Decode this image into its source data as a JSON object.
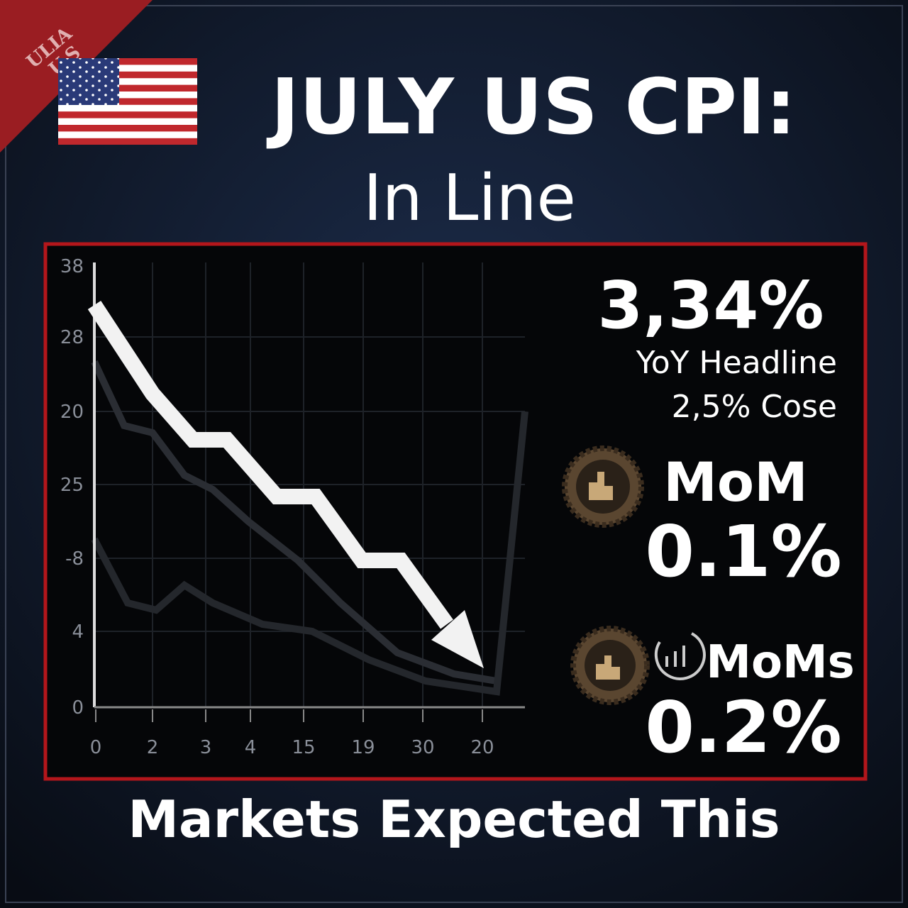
{
  "header": {
    "badge": [
      "ULIA",
      "U.S"
    ],
    "title": "JULY US CPI:",
    "subtitle": "In Line"
  },
  "chart": {
    "y_labels": [
      38,
      28,
      20,
      25,
      -8,
      4,
      0
    ],
    "x_labels": [
      0,
      2,
      3,
      4,
      15,
      19,
      30,
      20
    ]
  },
  "stats": {
    "headline_value": "3,34%",
    "headline_label": "YoY Headline",
    "core_label": "2,5% Cose",
    "mom_label": "MoM",
    "mom_value": "0.1%",
    "moms_label": "MoMs",
    "moms_value": "0.2%"
  },
  "footer": {
    "caption": "Markets Expected This"
  }
}
